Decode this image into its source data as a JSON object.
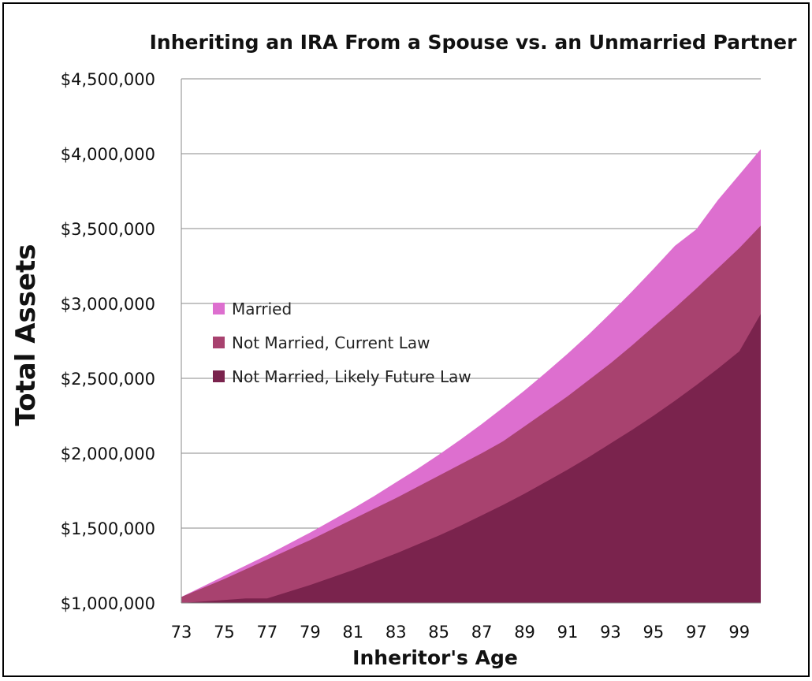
{
  "chart_data": {
    "type": "area",
    "title": "Inheriting an IRA From a Spouse vs. an Unmarried Partner",
    "xlabel": "Inheritor's Age",
    "ylabel": "Total Assets",
    "ylim": [
      1000000,
      4500000
    ],
    "xlim": [
      73,
      100
    ],
    "y_ticks": [
      1000000,
      1500000,
      2000000,
      2500000,
      3000000,
      3500000,
      4000000,
      4500000
    ],
    "y_tick_labels": [
      "$1,000,000",
      "$1,500,000",
      "$2,000,000",
      "$2,500,000",
      "$3,000,000",
      "$3,500,000",
      "$4,000,000",
      "$4,500,000"
    ],
    "x_ticks": [
      73,
      75,
      77,
      79,
      81,
      83,
      85,
      87,
      89,
      91,
      93,
      95,
      97,
      99
    ],
    "grid": "horizontal",
    "legend_position": "left-middle",
    "x": [
      73,
      74,
      75,
      76,
      77,
      78,
      79,
      80,
      81,
      82,
      83,
      84,
      85,
      86,
      87,
      88,
      89,
      90,
      91,
      92,
      93,
      94,
      95,
      96,
      97,
      98,
      99,
      100
    ],
    "series": [
      {
        "name": "Married",
        "color": "#dd6fcf",
        "values": [
          1040000,
          1110000,
          1180000,
          1250000,
          1320000,
          1395000,
          1470000,
          1550000,
          1630000,
          1715000,
          1805000,
          1895000,
          1990000,
          2090000,
          2195000,
          2305000,
          2420000,
          2540000,
          2665000,
          2795000,
          2935000,
          3080000,
          3230000,
          3385000,
          3495000,
          3690000,
          3860000,
          4030000
        ]
      },
      {
        "name": "Not Married, Current Law",
        "color": "#a8426f",
        "values": [
          1040000,
          1100000,
          1160000,
          1225000,
          1290000,
          1355000,
          1420000,
          1490000,
          1560000,
          1630000,
          1700000,
          1775000,
          1850000,
          1925000,
          2000000,
          2080000,
          2180000,
          2280000,
          2380000,
          2490000,
          2600000,
          2720000,
          2845000,
          2970000,
          3100000,
          3235000,
          3370000,
          3520000
        ]
      },
      {
        "name": "Not Married, Likely Future Law",
        "color": "#7a234d",
        "values": [
          1000000,
          1010000,
          1020000,
          1030000,
          1030000,
          1075000,
          1120000,
          1170000,
          1220000,
          1275000,
          1330000,
          1390000,
          1450000,
          1515000,
          1585000,
          1655000,
          1730000,
          1810000,
          1890000,
          1975000,
          2065000,
          2155000,
          2250000,
          2350000,
          2455000,
          2565000,
          2680000,
          2930000
        ]
      }
    ]
  }
}
